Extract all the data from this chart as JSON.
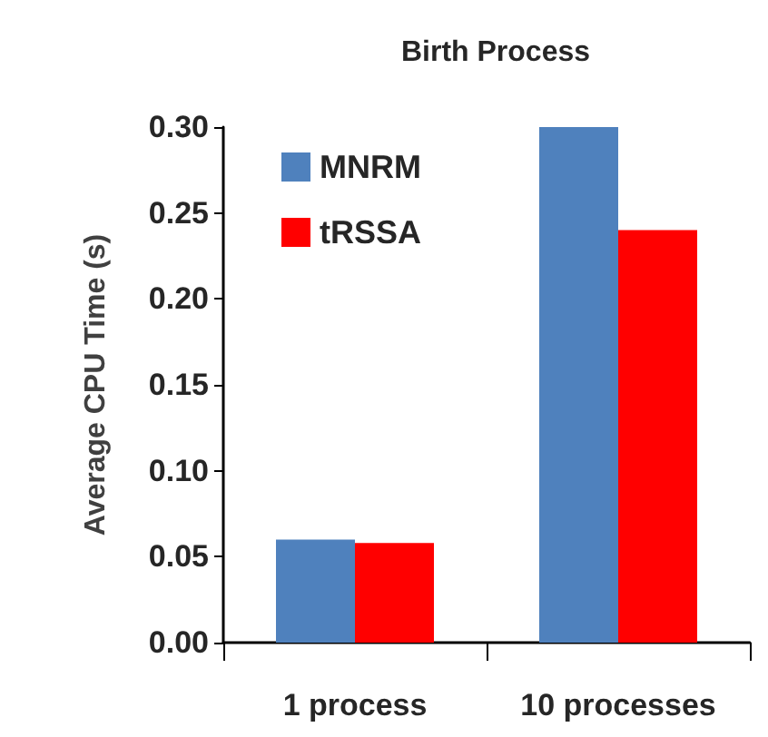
{
  "chart_data": {
    "type": "bar",
    "title": "Birth Process",
    "ylabel": "Average CPU Time (s)",
    "categories": [
      "1 process",
      "10 processes"
    ],
    "series": [
      {
        "name": "MNRM",
        "color": "#4f81bd",
        "values": [
          0.06,
          0.3
        ]
      },
      {
        "name": "tRSSA",
        "color": "#ff0000",
        "values": [
          0.058,
          0.24
        ]
      }
    ],
    "ylim": [
      0,
      0.3
    ],
    "yticks": [
      {
        "value": 0,
        "label": "0.00"
      },
      0.05,
      {
        "value": 0.1,
        "label": "0.10"
      },
      0.15,
      {
        "value": 0.2,
        "label": "0.20"
      },
      0.25,
      {
        "value": 0.3,
        "label": "0.30"
      }
    ],
    "grid": false,
    "legend": "top left"
  }
}
